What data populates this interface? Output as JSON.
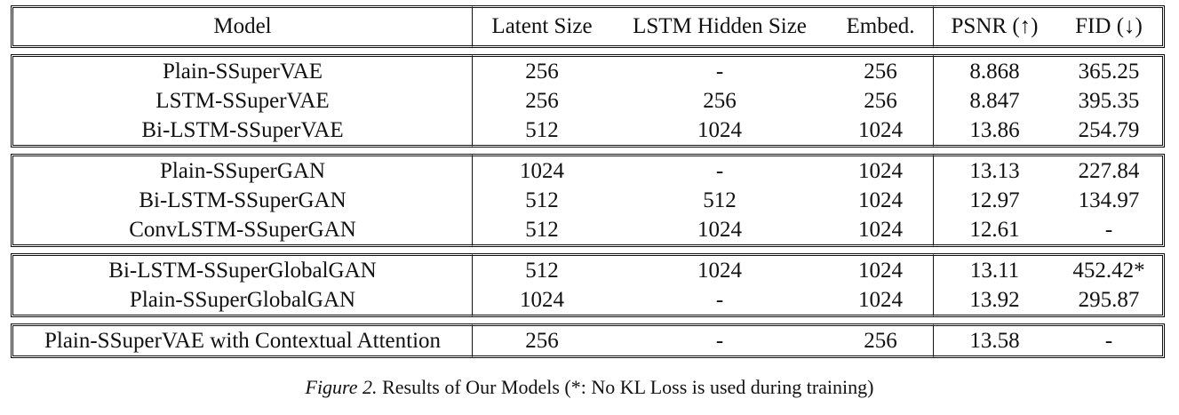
{
  "table": {
    "headers": [
      "Model",
      "Latent Size",
      "LSTM Hidden Size",
      "Embed.",
      "PSNR (↑)",
      "FID (↓)"
    ],
    "groups": [
      [
        [
          "Plain-SSuperVAE",
          "256",
          "-",
          "256",
          "8.868",
          "365.25"
        ],
        [
          "LSTM-SSuperVAE",
          "256",
          "256",
          "256",
          "8.847",
          "395.35"
        ],
        [
          "Bi-LSTM-SSuperVAE",
          "512",
          "1024",
          "1024",
          "13.86",
          "254.79"
        ]
      ],
      [
        [
          "Plain-SSuperGAN",
          "1024",
          "-",
          "1024",
          "13.13",
          "227.84"
        ],
        [
          "Bi-LSTM-SSuperGAN",
          "512",
          "512",
          "1024",
          "12.97",
          "134.97"
        ],
        [
          "ConvLSTM-SSuperGAN",
          "512",
          "1024",
          "1024",
          "12.61",
          "-"
        ]
      ],
      [
        [
          "Bi-LSTM-SSuperGlobalGAN",
          "512",
          "1024",
          "1024",
          "13.11",
          "452.42*"
        ],
        [
          "Plain-SSuperGlobalGAN",
          "1024",
          "-",
          "1024",
          "13.92",
          "295.87"
        ]
      ],
      [
        [
          "Plain-SSuperVAE with Contextual Attention",
          "256",
          "-",
          "256",
          "13.58",
          "-"
        ]
      ]
    ]
  },
  "caption": {
    "figure_label": "Figure 2.",
    "text": "Results of Our Models (*: No KL Loss is used during training)"
  }
}
